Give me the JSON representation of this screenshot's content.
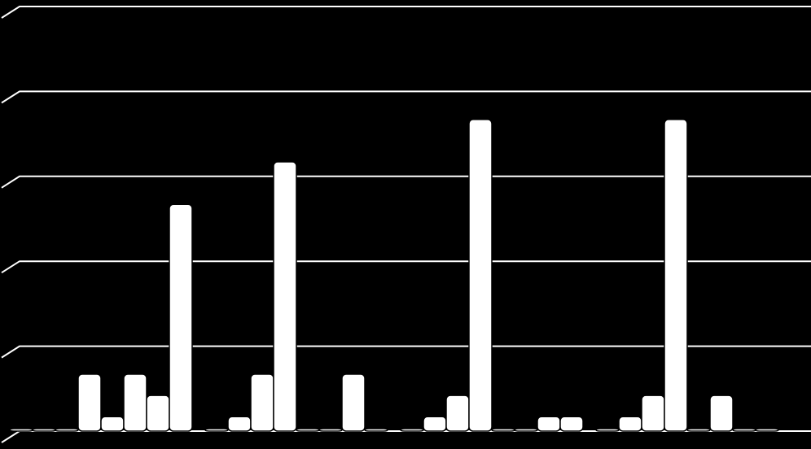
{
  "chart_data": {
    "type": "bar",
    "categories": [
      null,
      null,
      null,
      null
    ],
    "series": [
      {
        "color": "#ffffff",
        "values": [
          0,
          0,
          0,
          0
        ]
      },
      {
        "color": "#ffffff",
        "values": [
          0,
          0.17,
          0.17,
          0.17
        ]
      },
      {
        "color": "#ffffff",
        "values": [
          0,
          0.67,
          0.42,
          0.42
        ]
      },
      {
        "color": "#ffffff",
        "values": [
          0.67,
          3.17,
          3.67,
          3.67
        ]
      },
      {
        "color": "#ffffff",
        "values": [
          0.17,
          0,
          0,
          0
        ]
      },
      {
        "color": "#ffffff",
        "values": [
          0.67,
          0,
          0,
          0.42
        ]
      },
      {
        "color": "#ffffff",
        "values": [
          0.42,
          0.67,
          0.17,
          0
        ]
      },
      {
        "color": "#ffffff",
        "values": [
          2.67,
          0,
          0.17,
          0
        ]
      }
    ],
    "ylim": [
      0,
      5
    ],
    "yticks": [
      0,
      1,
      2,
      3,
      4,
      5
    ],
    "grid": true
  }
}
